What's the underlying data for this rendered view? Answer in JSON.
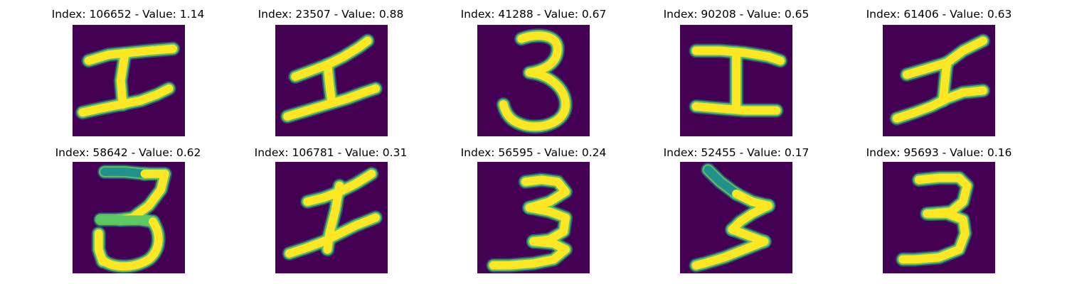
{
  "colors": {
    "background": "#440154",
    "stroke_mid": "#21918c",
    "stroke_edge": "#5ec962",
    "stroke_core": "#fde725"
  },
  "panels": [
    {
      "title": "Index: 106652 - Value: 1.14",
      "index": 106652,
      "value": 1.14,
      "digit": "I"
    },
    {
      "title": "Index: 23507 - Value: 0.88",
      "index": 23507,
      "value": 0.88,
      "digit": "I"
    },
    {
      "title": "Index: 41288 - Value: 0.67",
      "index": 41288,
      "value": 0.67,
      "digit": "3"
    },
    {
      "title": "Index: 90208 - Value: 0.65",
      "index": 90208,
      "value": 0.65,
      "digit": "I"
    },
    {
      "title": "Index: 61406 - Value: 0.63",
      "index": 61406,
      "value": 0.63,
      "digit": "I"
    },
    {
      "title": "Index: 58642 - Value: 0.62",
      "index": 58642,
      "value": 0.62,
      "digit": "3"
    },
    {
      "title": "Index: 106781 - Value: 0.31",
      "index": 106781,
      "value": 0.31,
      "digit": "I"
    },
    {
      "title": "Index: 56595 - Value: 0.24",
      "index": 56595,
      "value": 0.24,
      "digit": "3"
    },
    {
      "title": "Index: 52455 - Value: 0.17",
      "index": 52455,
      "value": 0.17,
      "digit": "3"
    },
    {
      "title": "Index: 95693 - Value: 0.16",
      "index": 95693,
      "value": 0.16,
      "digit": "3"
    }
  ]
}
